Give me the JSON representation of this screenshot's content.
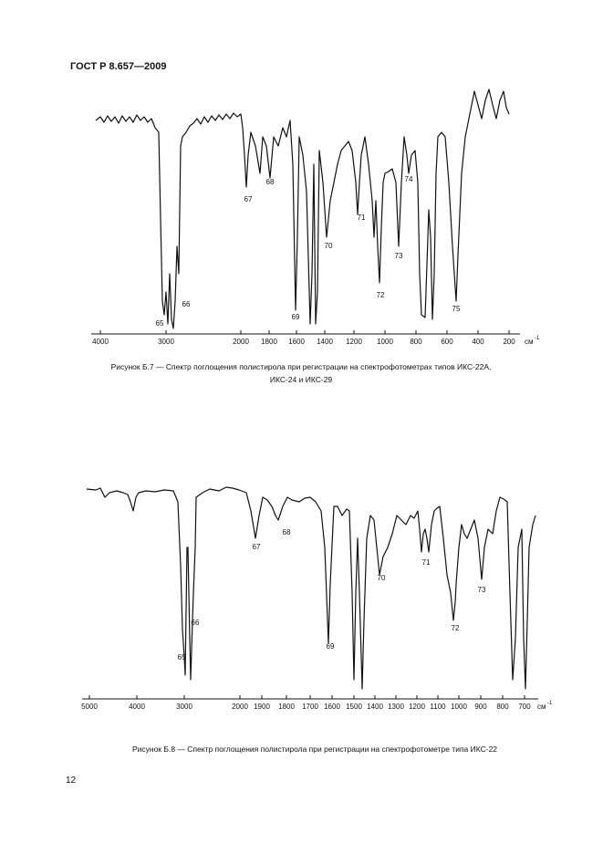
{
  "header": {
    "title": "ГОСТ Р 8.657—2009"
  },
  "figures": [
    {
      "xticks": [
        4000,
        3000,
        2000,
        1800,
        1600,
        1400,
        1200,
        1000,
        800,
        600,
        400,
        200
      ],
      "unit": "см",
      "unit_exp": "-1",
      "peaks": [
        "65",
        "66",
        "67",
        "68",
        "69",
        "70",
        "71",
        "72",
        "73",
        "74",
        "75"
      ],
      "caption": [
        "Рисунок Б.7 — Спектр поглощения полистирола при регистрации на спектрофотометрах типов ИКС-22А,",
        "ИКС-24 и ИКС-29"
      ]
    },
    {
      "xticks": [
        5000,
        4000,
        3000,
        2000,
        1900,
        1800,
        1700,
        1600,
        1500,
        1400,
        1300,
        1200,
        1100,
        1000,
        900,
        800,
        700
      ],
      "unit": "см",
      "unit_exp": "-1",
      "peaks": [
        "65",
        "66",
        "67",
        "68",
        "69",
        "70",
        "71",
        "72",
        "73"
      ],
      "caption": [
        "Рисунок Б.8 — Спектр поглощения полистирола при регистрации на спектрофотометре типа ИКС-22"
      ]
    }
  ],
  "footer": {
    "page": "12"
  }
}
